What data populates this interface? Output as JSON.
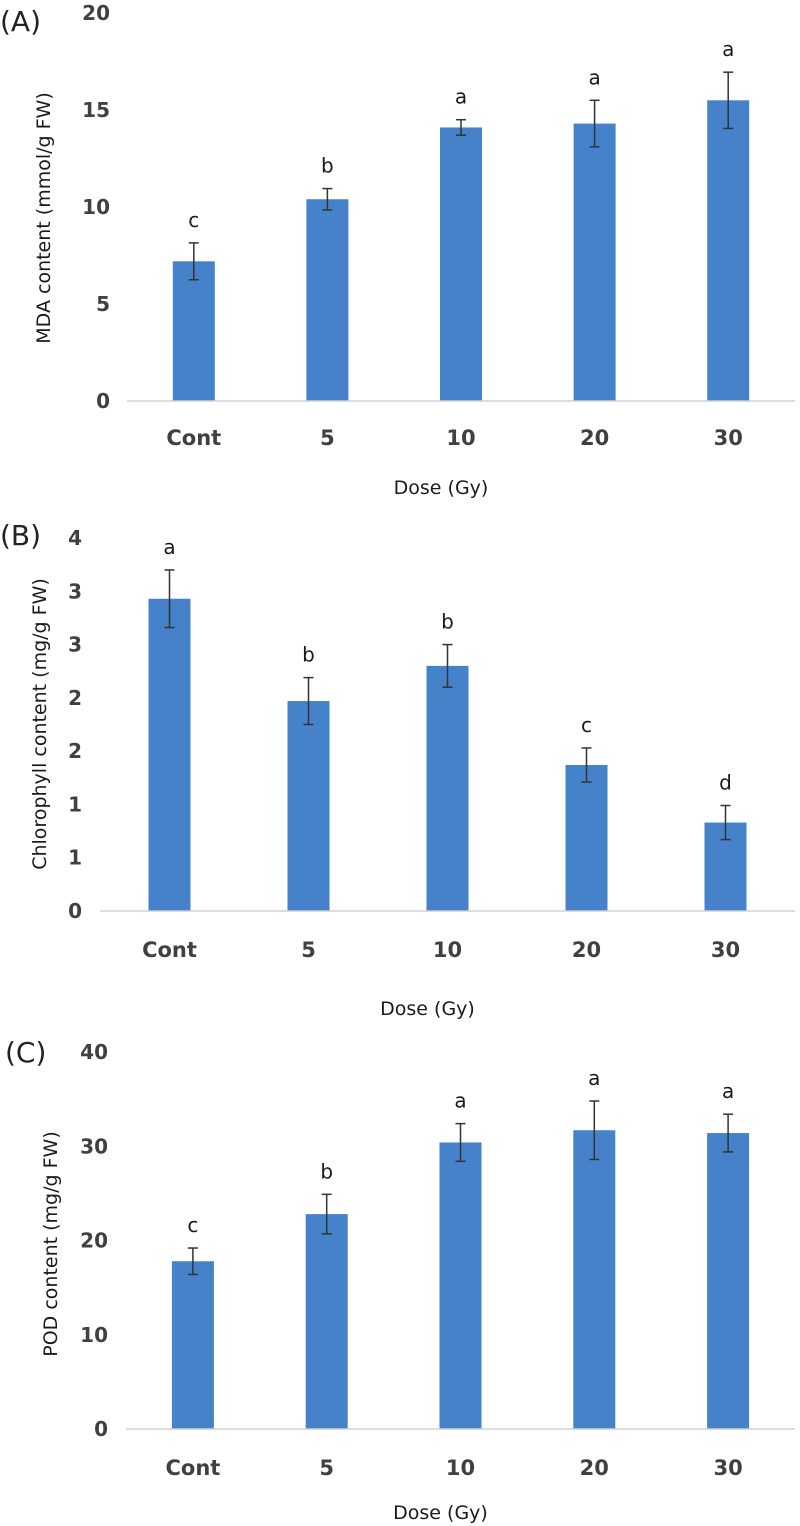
{
  "chart_data": [
    {
      "type": "bar",
      "panel_label": "(A)",
      "categories": [
        "Cont",
        "5",
        "10",
        "20",
        "30"
      ],
      "values": [
        7.2,
        10.4,
        14.1,
        14.3,
        15.5
      ],
      "errors": [
        0.95,
        0.55,
        0.4,
        1.2,
        1.45
      ],
      "significance": [
        "c",
        "b",
        "a",
        "a",
        "a"
      ],
      "xlabel": "Dose (Gy)",
      "ylabel": "MDA content (mmol/g FW)",
      "ylim": [
        0,
        20
      ],
      "yticks": [
        0,
        5,
        10,
        15,
        20
      ],
      "ytick_labels": [
        "0",
        "5",
        "10",
        "15",
        "20"
      ],
      "bar_color": "#4682CA"
    },
    {
      "type": "bar",
      "panel_label": "(B)",
      "categories": [
        "Cont",
        "5",
        "10",
        "20",
        "30"
      ],
      "values": [
        2.93,
        1.97,
        2.3,
        1.37,
        0.83
      ],
      "errors": [
        0.27,
        0.22,
        0.2,
        0.16,
        0.16
      ],
      "significance": [
        "a",
        "b",
        "b",
        "c",
        "d"
      ],
      "xlabel": "Dose (Gy)",
      "ylabel": "Chlorophyll content (mg/g FW)",
      "ylim": [
        0,
        3.5
      ],
      "yticks": [
        0,
        0.5,
        1,
        1.5,
        2,
        2.5,
        3,
        3.5
      ],
      "ytick_labels": [
        "0",
        "1",
        "1",
        "2",
        "2",
        "3",
        "3",
        "4"
      ],
      "bar_color": "#4682CA"
    },
    {
      "type": "bar",
      "panel_label": "(C)",
      "categories": [
        "Cont",
        "5",
        "10",
        "20",
        "30"
      ],
      "values": [
        17.8,
        22.8,
        30.4,
        31.7,
        31.4
      ],
      "errors": [
        1.4,
        2.1,
        2.0,
        3.1,
        2.0
      ],
      "significance": [
        "c",
        "b",
        "a",
        "a",
        "a"
      ],
      "xlabel": "Dose (Gy)",
      "ylabel": "POD content (mg/g FW)",
      "ylim": [
        0,
        40
      ],
      "yticks": [
        0,
        10,
        20,
        30,
        40
      ],
      "ytick_labels": [
        "0",
        "10",
        "20",
        "30",
        "40"
      ],
      "bar_color": "#4682CA"
    }
  ]
}
